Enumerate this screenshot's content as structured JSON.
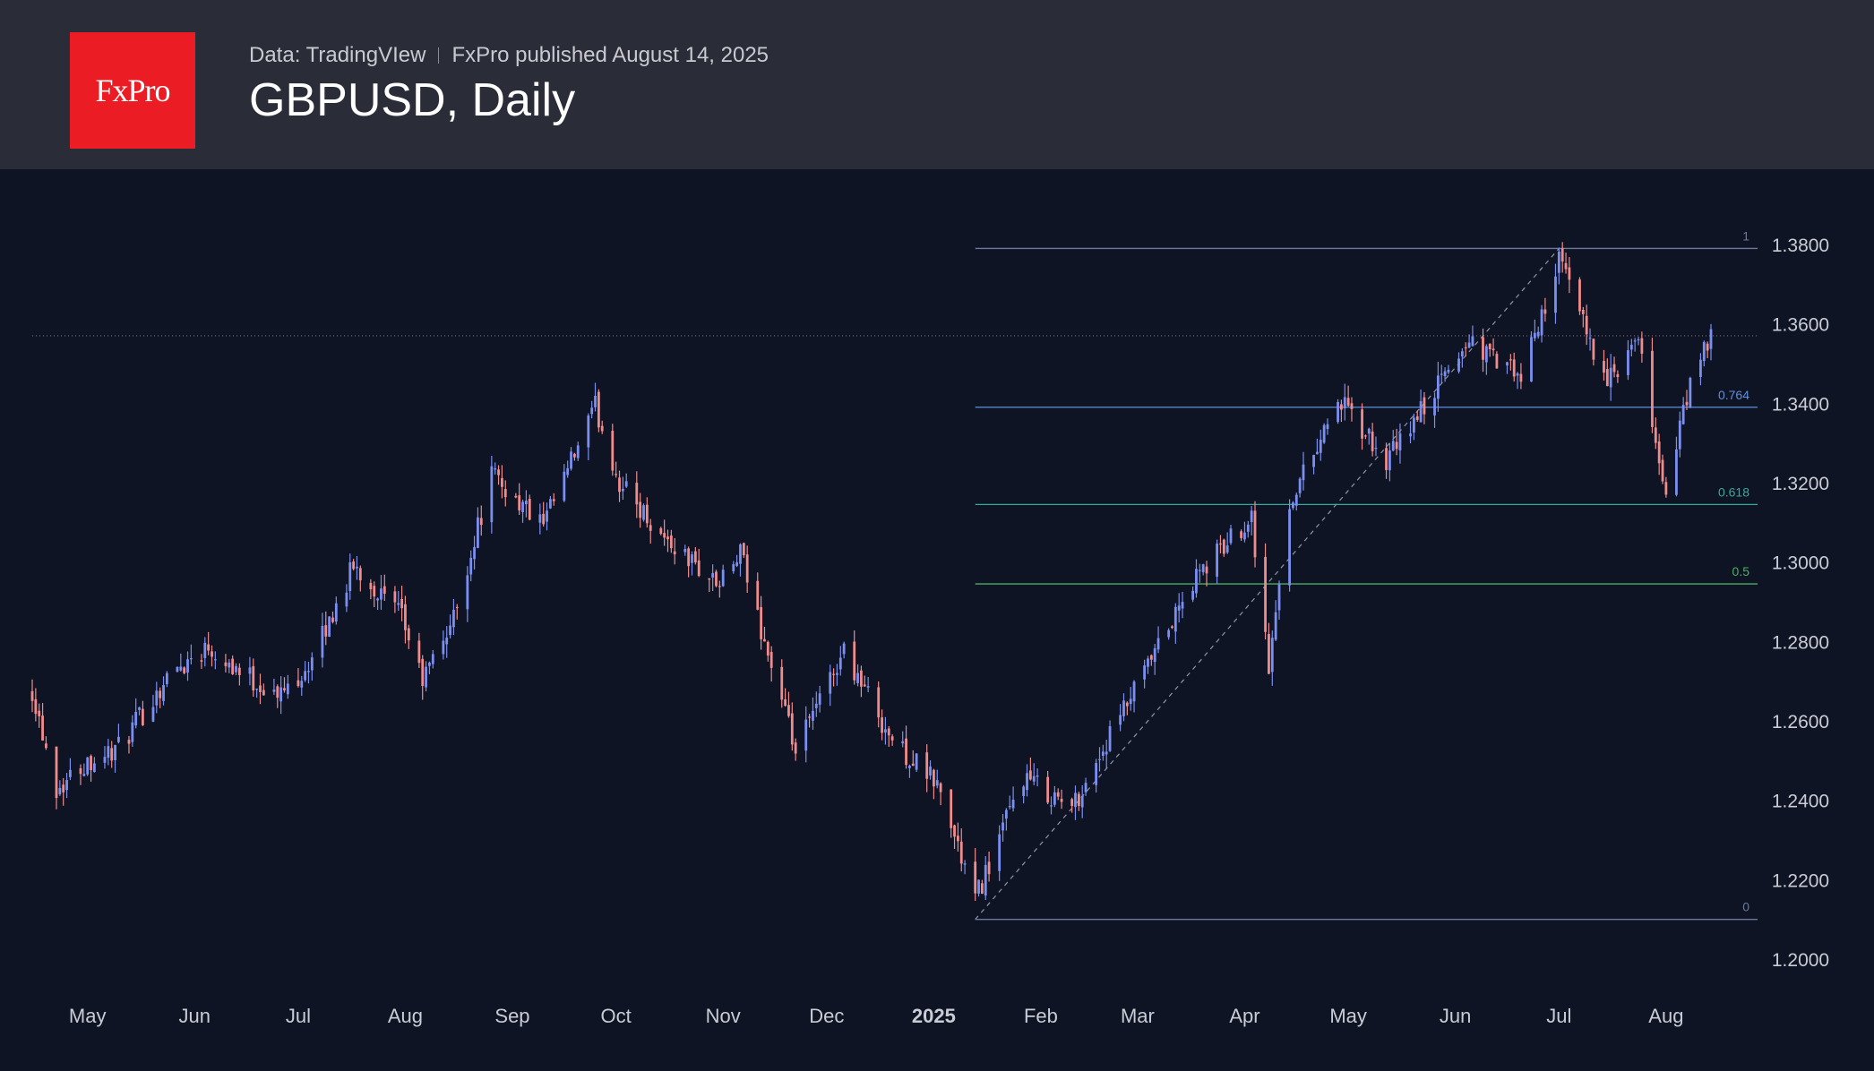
{
  "header": {
    "logo_text": "FxPro",
    "data_source": "Data: TradingVIew",
    "published": "FxPro published August 14, 2025",
    "title": "GBPUSD, Daily"
  },
  "colors": {
    "background": "#0e1424",
    "header_bg": "#2a2d38",
    "logo_red": "#ec1c24",
    "candle_up": "#7b8ff0",
    "candle_down": "#f08c8c",
    "fib_1": "#6a7a9a",
    "fib_0764": "#5f8fd8",
    "fib_0618": "#3aa89a",
    "fib_05": "#4caf60",
    "fib_0": "#6a7a9a"
  },
  "chart_data": {
    "type": "candlestick",
    "title": "GBPUSD, Daily",
    "ylim": [
      1.19,
      1.4
    ],
    "y_ticks": [
      "1.2000",
      "1.2200",
      "1.2400",
      "1.2600",
      "1.2800",
      "1.3000",
      "1.3200",
      "1.3400",
      "1.3600",
      "1.3800"
    ],
    "x_months": [
      {
        "label": "May",
        "date": "2024-05-01"
      },
      {
        "label": "Jun",
        "date": "2024-06-01"
      },
      {
        "label": "Jul",
        "date": "2024-07-01"
      },
      {
        "label": "Aug",
        "date": "2024-08-01"
      },
      {
        "label": "Sep",
        "date": "2024-09-01"
      },
      {
        "label": "Oct",
        "date": "2024-10-01"
      },
      {
        "label": "Nov",
        "date": "2024-11-01"
      },
      {
        "label": "Dec",
        "date": "2024-12-01"
      },
      {
        "label": "2025",
        "date": "2025-01-01",
        "bold": true
      },
      {
        "label": "Feb",
        "date": "2025-02-01"
      },
      {
        "label": "Mar",
        "date": "2025-03-01"
      },
      {
        "label": "Apr",
        "date": "2025-04-01"
      },
      {
        "label": "May",
        "date": "2025-05-01"
      },
      {
        "label": "Jun",
        "date": "2025-06-01"
      },
      {
        "label": "Jul",
        "date": "2025-07-01"
      },
      {
        "label": "Aug",
        "date": "2025-08-01"
      }
    ],
    "x_range": [
      "2024-04-15",
      "2025-08-14"
    ],
    "close_path": [
      [
        "2024-04-15",
        1.268
      ],
      [
        "2024-04-22",
        1.243
      ],
      [
        "2024-05-01",
        1.25
      ],
      [
        "2024-05-10",
        1.253
      ],
      [
        "2024-05-25",
        1.272
      ],
      [
        "2024-06-05",
        1.279
      ],
      [
        "2024-06-15",
        1.272
      ],
      [
        "2024-06-25",
        1.266
      ],
      [
        "2024-07-05",
        1.275
      ],
      [
        "2024-07-17",
        1.299
      ],
      [
        "2024-07-31",
        1.286
      ],
      [
        "2024-08-06",
        1.27
      ],
      [
        "2024-08-15",
        1.286
      ],
      [
        "2024-08-26",
        1.322
      ],
      [
        "2024-09-10",
        1.309
      ],
      [
        "2024-09-25",
        1.339
      ],
      [
        "2024-10-02",
        1.32
      ],
      [
        "2024-10-15",
        1.306
      ],
      [
        "2024-10-31",
        1.294
      ],
      [
        "2024-11-06",
        1.302
      ],
      [
        "2024-11-22",
        1.252
      ],
      [
        "2024-12-06",
        1.278
      ],
      [
        "2024-12-20",
        1.255
      ],
      [
        "2025-01-02",
        1.244
      ],
      [
        "2025-01-13",
        1.215
      ],
      [
        "2025-01-27",
        1.246
      ],
      [
        "2025-02-10",
        1.238
      ],
      [
        "2025-02-26",
        1.264
      ],
      [
        "2025-03-18",
        1.296
      ],
      [
        "2025-04-03",
        1.312
      ],
      [
        "2025-04-08",
        1.273
      ],
      [
        "2025-04-14",
        1.315
      ],
      [
        "2025-04-28",
        1.341
      ],
      [
        "2025-05-12",
        1.325
      ],
      [
        "2025-05-22",
        1.338
      ],
      [
        "2025-06-05",
        1.356
      ],
      [
        "2025-06-20",
        1.346
      ],
      [
        "2025-07-01",
        1.376
      ],
      [
        "2025-07-15",
        1.345
      ],
      [
        "2025-07-24",
        1.355
      ],
      [
        "2025-08-01",
        1.316
      ],
      [
        "2025-08-07",
        1.342
      ],
      [
        "2025-08-14",
        1.357
      ]
    ],
    "current_price": 1.357,
    "fibonacci": {
      "start": {
        "date": "2025-01-13",
        "price": 1.21
      },
      "end": {
        "date": "2025-07-01",
        "price": 1.379
      },
      "levels": [
        {
          "label": "1",
          "price": 1.379
        },
        {
          "label": "0.764",
          "price": 1.339
        },
        {
          "label": "0.618",
          "price": 1.3145
        },
        {
          "label": "0.5",
          "price": 1.2945
        },
        {
          "label": "0",
          "price": 1.21
        }
      ]
    }
  }
}
